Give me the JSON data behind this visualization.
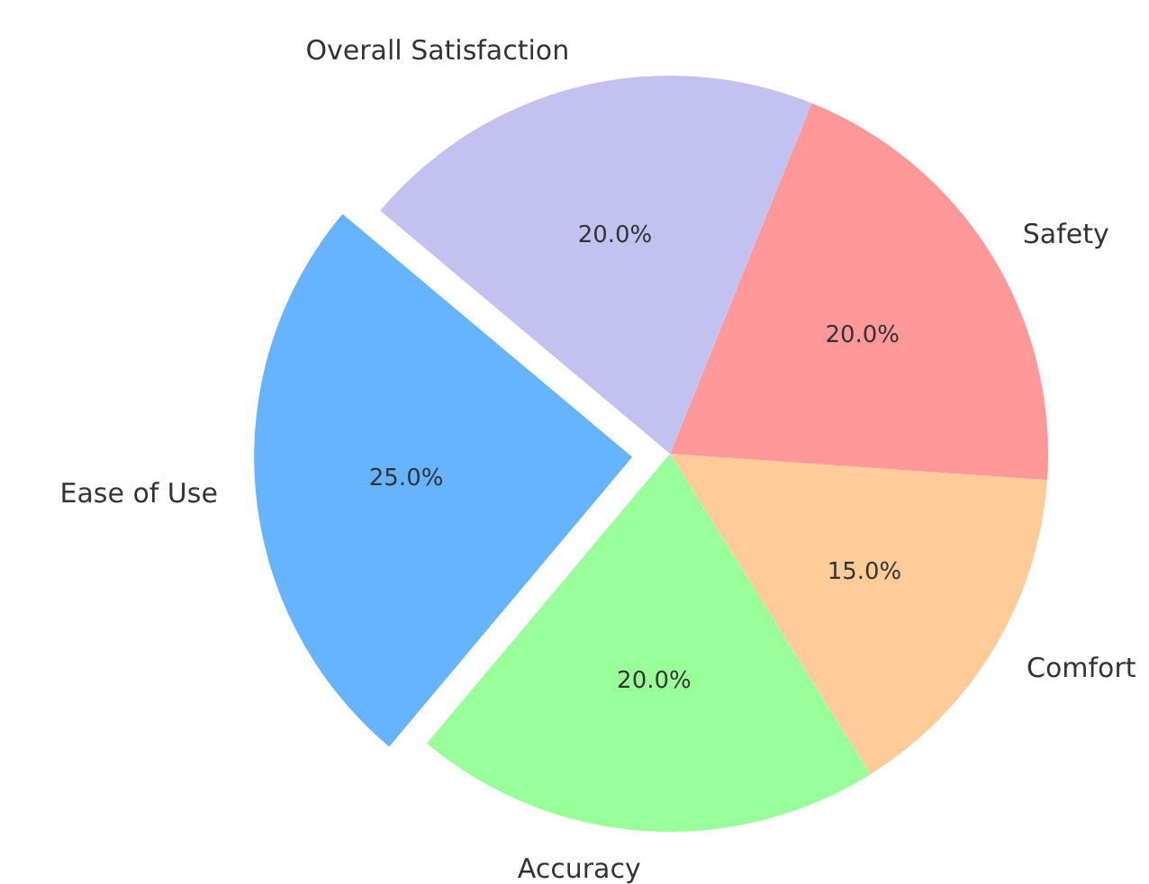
{
  "chart_data": {
    "type": "pie",
    "categories": [
      "Ease of Use",
      "Accuracy",
      "Comfort",
      "Safety",
      "Overall Satisfaction"
    ],
    "values": [
      25,
      20,
      15,
      20,
      20
    ],
    "colors": [
      "#66b3ff",
      "#99ff99",
      "#ffcc99",
      "#ff9999",
      "#c2c2f0"
    ],
    "value_labels": [
      "25.0%",
      "20.0%",
      "15.0%",
      "20.0%",
      "20.0%"
    ]
  }
}
